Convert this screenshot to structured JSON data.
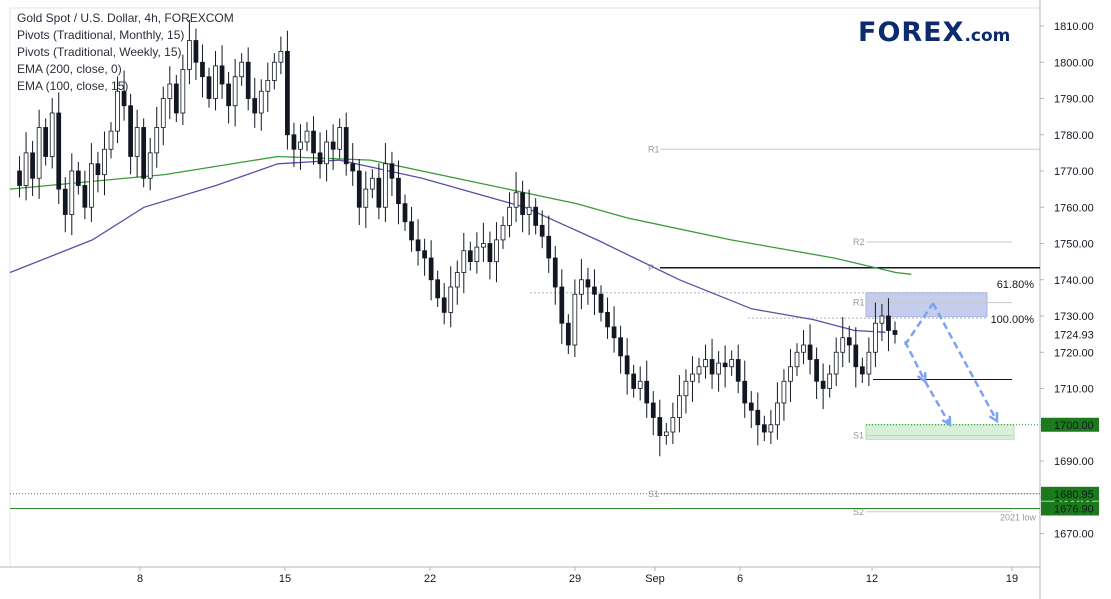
{
  "legend": [
    "Gold Spot / U.S. Dollar, 4h, FOREXCOM",
    "Pivots (Traditional, Monthly, 15)",
    "Pivots (Traditional, Weekly, 15)",
    "EMA (200, close, 0)",
    "EMA (100, close, 15)"
  ],
  "logo": {
    "text": "FOREX",
    "suffix": ".com",
    "color": "#0c2a6e"
  },
  "chart_data": {
    "type": "line",
    "y_ticks": [
      1810,
      1800,
      1790,
      1780,
      1770,
      1760,
      1750,
      1740,
      1730,
      1720,
      1710,
      1700,
      1690,
      1680,
      1670
    ],
    "ylim": [
      1662,
      1815
    ],
    "x_tick_labels": [
      "8",
      "15",
      "22",
      "29",
      "Sep",
      "6",
      "12",
      "19"
    ],
    "price_badges": [
      {
        "label": "1724.93",
        "value": 1724.93,
        "style": "plain"
      },
      {
        "label": "1700.00",
        "value": 1700.0,
        "style": "green"
      },
      {
        "label": "1680.95",
        "value": 1680.95,
        "style": "green"
      },
      {
        "label": "1676.90",
        "value": 1676.9,
        "style": "green"
      }
    ],
    "price_path": [
      1770,
      1766,
      1775,
      1768,
      1782,
      1774,
      1786,
      1765,
      1758,
      1770,
      1766,
      1760,
      1772,
      1769,
      1776,
      1781,
      1792,
      1788,
      1774,
      1782,
      1768,
      1775,
      1782,
      1790,
      1794,
      1786,
      1798,
      1806,
      1800,
      1796,
      1790,
      1799,
      1794,
      1788,
      1796,
      1800,
      1790,
      1786,
      1792,
      1795,
      1800,
      1803,
      1780,
      1776,
      1778,
      1781,
      1775,
      1772,
      1778,
      1776,
      1782,
      1772,
      1770,
      1760,
      1765,
      1768,
      1760,
      1772,
      1768,
      1761,
      1756,
      1751,
      1748,
      1746,
      1740,
      1735,
      1731,
      1738,
      1742,
      1748,
      1745,
      1749,
      1750,
      1745,
      1751,
      1755,
      1760,
      1764,
      1758,
      1760,
      1755,
      1752,
      1746,
      1738,
      1728,
      1722,
      1736,
      1740,
      1738,
      1736,
      1731,
      1727,
      1724,
      1719,
      1714,
      1710,
      1712,
      1706,
      1702,
      1697,
      1698,
      1702,
      1708,
      1712,
      1714,
      1716,
      1718,
      1714,
      1717,
      1716,
      1718,
      1712,
      1706,
      1704,
      1700,
      1698,
      1700,
      1706,
      1712,
      1716,
      1720,
      1722,
      1718,
      1712,
      1710,
      1714,
      1720,
      1724,
      1722,
      1716,
      1714,
      1720,
      1728,
      1730,
      1726,
      1724.9
    ],
    "ema_200": [
      [
        0,
        1765
      ],
      [
        0.15,
        1769
      ],
      [
        0.26,
        1774
      ],
      [
        0.35,
        1773
      ],
      [
        0.45,
        1767
      ],
      [
        0.55,
        1761
      ],
      [
        0.6,
        1757
      ],
      [
        0.7,
        1751
      ],
      [
        0.8,
        1746
      ],
      [
        0.86,
        1742
      ],
      [
        0.875,
        1741.5
      ]
    ],
    "ema_100": [
      [
        0,
        1742
      ],
      [
        0.08,
        1751
      ],
      [
        0.13,
        1760
      ],
      [
        0.2,
        1766
      ],
      [
        0.26,
        1772
      ],
      [
        0.32,
        1773
      ],
      [
        0.4,
        1768
      ],
      [
        0.5,
        1760
      ],
      [
        0.57,
        1751
      ],
      [
        0.65,
        1740
      ],
      [
        0.72,
        1732
      ],
      [
        0.78,
        1729
      ],
      [
        0.82,
        1726
      ],
      [
        0.85,
        1725.5
      ]
    ],
    "levels": [
      {
        "label": "R1",
        "value": 1776,
        "tier": "monthly"
      },
      {
        "label": "R2",
        "value": 1750.4,
        "tier": "weekly"
      },
      {
        "label": "P",
        "value": 1743.3,
        "tier": "monthly"
      },
      {
        "label": "R1",
        "value": 1733.7,
        "tier": "weekly"
      },
      {
        "label": "S1",
        "value": 1697,
        "tier": "weekly"
      },
      {
        "label": "S1",
        "value": 1680.95,
        "tier": "monthly"
      },
      {
        "label": "S2",
        "value": 1676,
        "tier": "weekly"
      }
    ],
    "fib_levels": [
      {
        "label": "61.80%",
        "value": 1736.4
      },
      {
        "label": "100.00%",
        "value": 1729.4
      }
    ],
    "zones": [
      {
        "value_from": 1729.8,
        "value_to": 1736.4,
        "color": "#b2bde6"
      },
      {
        "value_from": 1696,
        "value_to": 1700,
        "color": "#cdeccd"
      }
    ],
    "support_line": 1712.5,
    "annotation": {
      "label": "2021 low",
      "value": 1676.9
    },
    "colors": {
      "up": "#ffffff",
      "down": "#131722",
      "ema200": "#3a9a3a",
      "ema100": "#5a4fa8",
      "green_badge": "#1b7a1b",
      "arrows": "#7ca3f2"
    }
  }
}
